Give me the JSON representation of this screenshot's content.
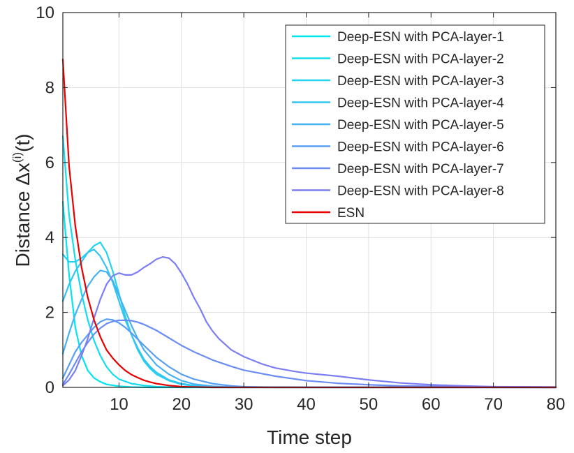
{
  "chart_data": {
    "type": "line",
    "title": "",
    "xlabel": "Time step",
    "ylabel": "Distance Δx(t)",
    "ylabel_parts": {
      "prefix": "Distance ",
      "symbol": "Δx",
      "superscript": "(i)",
      "suffix": "(t)"
    },
    "xlim": [
      1,
      80
    ],
    "ylim": [
      0,
      10
    ],
    "xticks": [
      10,
      20,
      30,
      40,
      50,
      60,
      70,
      80
    ],
    "yticks": [
      0,
      2,
      4,
      6,
      8,
      10
    ],
    "grid": true,
    "legend_position": "top-right",
    "series": [
      {
        "name": "Deep-ESN with PCA-layer-1",
        "color": "#00e5ee",
        "x": [
          1,
          2,
          3,
          4,
          5,
          6,
          7,
          8,
          10,
          12,
          15,
          20,
          80
        ],
        "y": [
          4.95,
          3.0,
          1.6,
          0.85,
          0.45,
          0.25,
          0.15,
          0.08,
          0.03,
          0.01,
          0.0,
          0.0,
          0.0
        ]
      },
      {
        "name": "Deep-ESN with PCA-layer-2",
        "color": "#10ddee",
        "x": [
          1,
          2,
          3,
          4,
          5,
          6,
          7,
          8,
          9,
          10,
          12,
          14,
          16,
          18,
          20,
          25,
          80
        ],
        "y": [
          6.7,
          4.6,
          3.4,
          2.5,
          1.8,
          1.25,
          0.85,
          0.55,
          0.35,
          0.22,
          0.1,
          0.05,
          0.02,
          0.01,
          0.0,
          0.0,
          0.0
        ]
      },
      {
        "name": "Deep-ESN with PCA-layer-3",
        "color": "#22d2ef",
        "x": [
          1,
          2,
          3,
          4,
          5,
          6,
          7,
          8,
          9,
          10,
          11,
          12,
          13,
          14,
          15,
          16,
          18,
          20,
          22,
          25,
          80
        ],
        "y": [
          3.55,
          3.35,
          3.35,
          3.45,
          3.6,
          3.78,
          3.87,
          3.6,
          3.1,
          2.5,
          1.9,
          1.4,
          1.0,
          0.7,
          0.5,
          0.35,
          0.18,
          0.08,
          0.04,
          0.01,
          0.0
        ]
      },
      {
        "name": "Deep-ESN with PCA-layer-4",
        "color": "#33c4f0",
        "x": [
          1,
          2,
          3,
          4,
          5,
          6,
          7,
          8,
          9,
          10,
          11,
          12,
          13,
          14,
          15,
          16,
          18,
          20,
          22,
          25,
          80
        ],
        "y": [
          2.3,
          2.75,
          3.1,
          3.35,
          3.6,
          3.68,
          3.5,
          3.2,
          2.8,
          2.3,
          1.8,
          1.4,
          1.05,
          0.75,
          0.55,
          0.4,
          0.2,
          0.1,
          0.05,
          0.01,
          0.0
        ]
      },
      {
        "name": "Deep-ESN with PCA-layer-5",
        "color": "#46b2f1",
        "x": [
          1,
          2,
          3,
          4,
          5,
          6,
          7,
          8,
          9,
          10,
          11,
          12,
          13,
          14,
          15,
          16,
          18,
          20,
          22,
          25,
          28,
          80
        ],
        "y": [
          0.9,
          1.45,
          1.95,
          2.35,
          2.7,
          2.95,
          3.12,
          3.08,
          2.85,
          2.45,
          2.05,
          1.65,
          1.3,
          1.0,
          0.8,
          0.6,
          0.35,
          0.18,
          0.09,
          0.03,
          0.01,
          0.0
        ]
      },
      {
        "name": "Deep-ESN with PCA-layer-6",
        "color": "#5a9ef2",
        "x": [
          1,
          2,
          3,
          4,
          5,
          6,
          7,
          8,
          9,
          10,
          11,
          12,
          14,
          16,
          18,
          20,
          22,
          25,
          28,
          30,
          35,
          80
        ],
        "y": [
          0.25,
          0.6,
          0.95,
          1.2,
          1.4,
          1.6,
          1.75,
          1.82,
          1.8,
          1.72,
          1.6,
          1.45,
          1.12,
          0.8,
          0.55,
          0.35,
          0.22,
          0.1,
          0.04,
          0.02,
          0.0,
          0.0
        ]
      },
      {
        "name": "Deep-ESN with PCA-layer-7",
        "color": "#6b8df3",
        "x": [
          1,
          2,
          3,
          4,
          5,
          6,
          7,
          8,
          9,
          10,
          11,
          12,
          13,
          14,
          16,
          18,
          20,
          22,
          25,
          28,
          30,
          35,
          40,
          45,
          50,
          55,
          60,
          65,
          70,
          80
        ],
        "y": [
          0.08,
          0.35,
          0.65,
          0.95,
          1.2,
          1.42,
          1.58,
          1.7,
          1.76,
          1.79,
          1.79,
          1.78,
          1.74,
          1.68,
          1.52,
          1.32,
          1.12,
          0.95,
          0.73,
          0.56,
          0.46,
          0.3,
          0.18,
          0.11,
          0.07,
          0.04,
          0.03,
          0.02,
          0.01,
          0.01
        ]
      },
      {
        "name": "Deep-ESN with PCA-layer-8",
        "color": "#7b7ef2",
        "x": [
          1,
          2,
          3,
          4,
          5,
          6,
          7,
          8,
          9,
          10,
          11,
          12,
          13,
          14,
          15,
          16,
          17,
          18,
          19,
          20,
          21,
          22,
          23,
          24,
          25,
          26,
          28,
          30,
          33,
          35,
          38,
          40,
          45,
          50,
          55,
          60,
          65,
          70,
          80
        ],
        "y": [
          0.05,
          0.2,
          0.45,
          0.85,
          1.3,
          1.85,
          2.35,
          2.75,
          2.98,
          3.05,
          3.0,
          3.0,
          3.08,
          3.2,
          3.3,
          3.42,
          3.48,
          3.45,
          3.3,
          3.05,
          2.75,
          2.4,
          2.1,
          1.75,
          1.5,
          1.3,
          1.0,
          0.82,
          0.62,
          0.52,
          0.43,
          0.38,
          0.3,
          0.2,
          0.12,
          0.07,
          0.04,
          0.02,
          0.01
        ]
      },
      {
        "name": "ESN",
        "color": "#e60000",
        "x": [
          1,
          2,
          3,
          4,
          5,
          6,
          7,
          8,
          9,
          10,
          11,
          12,
          13,
          14,
          15,
          16,
          18,
          20,
          22,
          25,
          80
        ],
        "y": [
          8.75,
          5.9,
          4.3,
          3.2,
          2.4,
          1.8,
          1.35,
          1.0,
          0.78,
          0.6,
          0.45,
          0.34,
          0.26,
          0.19,
          0.14,
          0.1,
          0.05,
          0.02,
          0.01,
          0.0,
          0.0
        ]
      }
    ]
  }
}
